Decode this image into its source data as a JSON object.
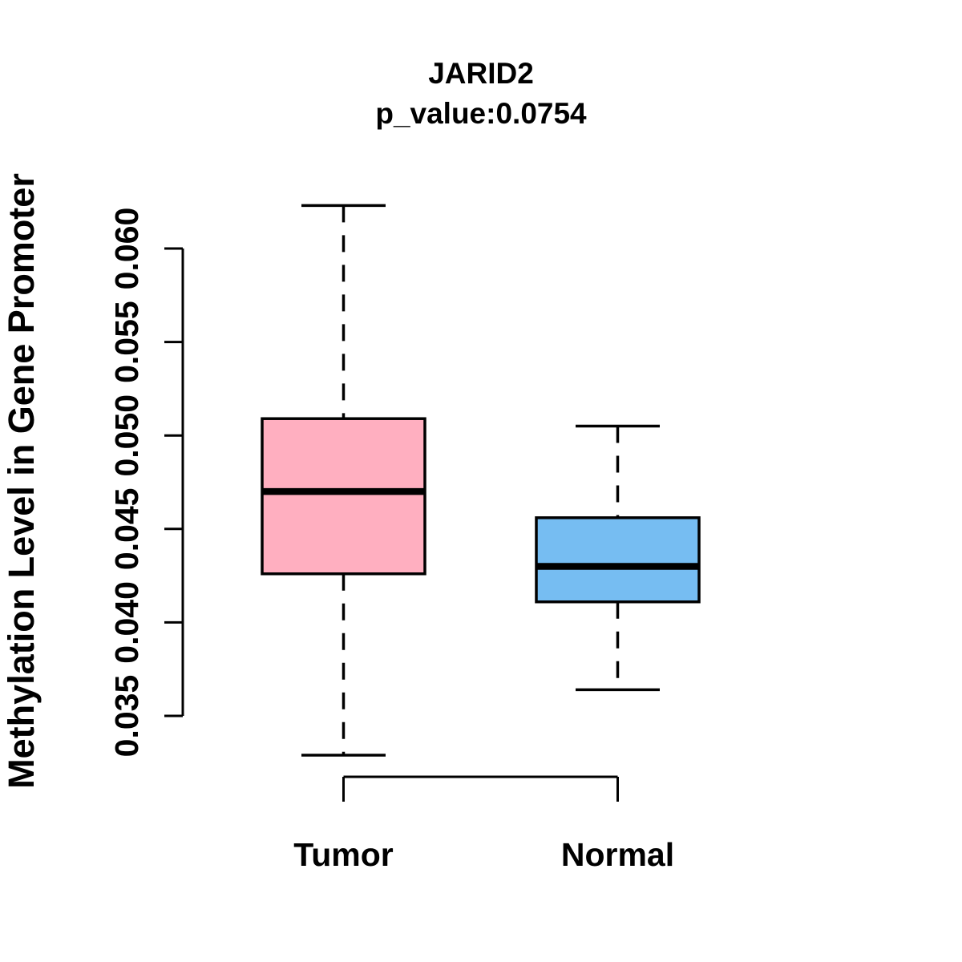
{
  "figure": {
    "title": "JARID2",
    "subtitle": "p_value:0.0754",
    "ylabel": "Methylation Level in Gene Promoter"
  },
  "chart_data": {
    "type": "boxplot",
    "title": "JARID2",
    "subtitle": "p_value:0.0754",
    "gene": "JARID2",
    "p_value": 0.0754,
    "ylabel": "Methylation Level in Gene Promoter",
    "xlabel": "",
    "grid": false,
    "legend": "none",
    "axis_tick_range": [
      0.035,
      0.06
    ],
    "ylim": [
      0.0325,
      0.0625
    ],
    "yticks": [
      {
        "value": 0.035,
        "label": "0.035"
      },
      {
        "value": 0.04,
        "label": "0.040"
      },
      {
        "value": 0.045,
        "label": "0.045"
      },
      {
        "value": 0.05,
        "label": "0.050"
      },
      {
        "value": 0.055,
        "label": "0.055"
      },
      {
        "value": 0.06,
        "label": "0.060"
      }
    ],
    "groups": [
      {
        "label": "Tumor",
        "box_color": "#FFAFC0",
        "stats": {
          "lower_whisker": 0.0329,
          "q1": 0.0426,
          "median": 0.047,
          "q3": 0.0509,
          "upper_whisker": 0.0623
        }
      },
      {
        "label": "Normal",
        "box_color": "#76BDF2",
        "stats": {
          "lower_whisker": 0.0364,
          "q1": 0.0411,
          "median": 0.043,
          "q3": 0.0456,
          "upper_whisker": 0.0505
        }
      }
    ],
    "colors": {
      "line": "#000000",
      "background": "#FFFFFF"
    }
  }
}
